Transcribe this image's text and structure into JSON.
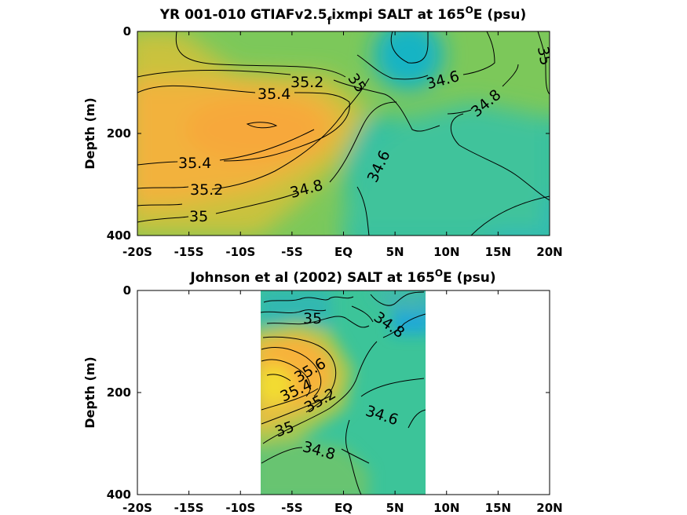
{
  "chart_data": [
    {
      "type": "heatmap",
      "title": {
        "main": "YR 001-010 GTIAFv2.5",
        "sub": "f",
        "rest": "ixmpi SALT at 165",
        "sup": "O",
        "end": "E (psu)"
      },
      "ylabel": "Depth (m)",
      "xlim": [
        -20,
        20
      ],
      "ylim": [
        0,
        400
      ],
      "x_ticks": [
        "-20S",
        "-15S",
        "-10S",
        "-5S",
        "EQ",
        "5N",
        "10N",
        "15N",
        "20N"
      ],
      "y_ticks": [
        "0",
        "200",
        "400"
      ],
      "data_x_range": [
        -20,
        20
      ],
      "contour_labels": [
        "35.2",
        "35.4",
        "35",
        "34.6",
        "34.8",
        "35",
        "35.4",
        "35.2",
        "35",
        "34.8",
        "34.6"
      ],
      "grid": false
    },
    {
      "type": "heatmap",
      "title": {
        "main": "Johnson et al (2002) SALT at 165",
        "sub": "",
        "rest": "",
        "sup": "O",
        "end": "E (psu)"
      },
      "ylabel": "Depth (m)",
      "xlim": [
        -20,
        20
      ],
      "ylim": [
        0,
        400
      ],
      "x_ticks": [
        "-20S",
        "-15S",
        "-10S",
        "-5S",
        "EQ",
        "5N",
        "10N",
        "15N",
        "20N"
      ],
      "y_ticks": [
        "0",
        "200",
        "400"
      ],
      "data_x_range": [
        -8,
        8
      ],
      "contour_labels": [
        "35",
        "34.8",
        "35.6",
        "35.4",
        "35.2",
        "35",
        "34.6",
        "34.8"
      ],
      "grid": false
    }
  ]
}
